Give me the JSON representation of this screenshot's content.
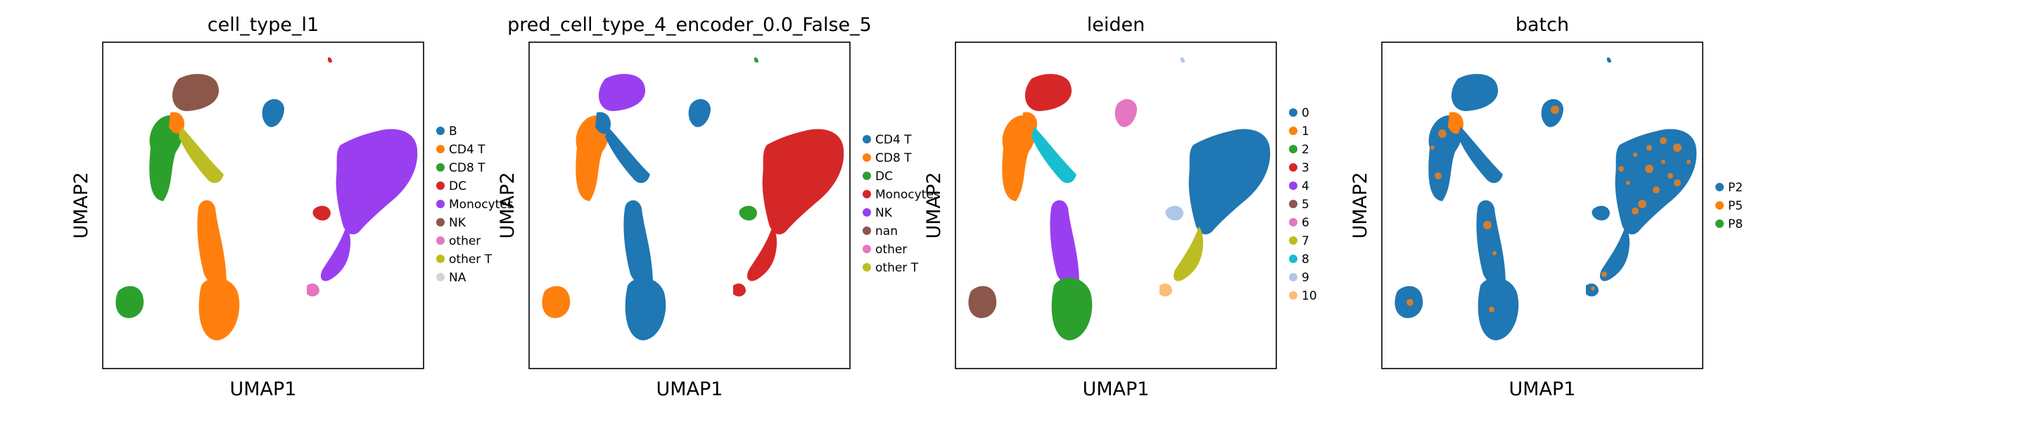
{
  "chart_data": [
    {
      "type": "scatter",
      "title": "cell_type_l1",
      "xlabel": "UMAP1",
      "ylabel": "UMAP2",
      "legend_placement": "right",
      "legend": [
        {
          "label": "B",
          "color": "#1f77b4"
        },
        {
          "label": "CD4 T",
          "color": "#ff7f0e"
        },
        {
          "label": "CD8 T",
          "color": "#2ca02c"
        },
        {
          "label": "DC",
          "color": "#d62728"
        },
        {
          "label": "Monocytes",
          "color": "#9a3ff0"
        },
        {
          "label": "NK",
          "color": "#8c564b"
        },
        {
          "label": "other",
          "color": "#e377c2"
        },
        {
          "label": "other T",
          "color": "#bcbd22"
        },
        {
          "label": "NA",
          "color": "#d3d3d3"
        }
      ],
      "regions": [
        {
          "region": "top-left",
          "color": "#8c564b"
        },
        {
          "region": "left-upper",
          "color": "#2ca02c"
        },
        {
          "region": "left-upper-edge",
          "color": "#ff7f0e"
        },
        {
          "region": "bridge",
          "color": "#bcbd22"
        },
        {
          "region": "central-column",
          "color": "#ff7f0e"
        },
        {
          "region": "central-bottom",
          "color": "#ff7f0e"
        },
        {
          "region": "far-left-small",
          "color": "#2ca02c"
        },
        {
          "region": "small-top-center",
          "color": "#1f77b4"
        },
        {
          "region": "tiny-top-right",
          "color": "#d62728"
        },
        {
          "region": "right-large",
          "color": "#9a3ff0"
        },
        {
          "region": "right-tail",
          "color": "#9a3ff0"
        },
        {
          "region": "right-red-bit",
          "color": "#d62728"
        },
        {
          "region": "bottom-pink",
          "color": "#e377c2"
        }
      ]
    },
    {
      "type": "scatter",
      "title": "pred_cell_type_4_encoder_0.0_False_5",
      "xlabel": "UMAP1",
      "ylabel": "UMAP2",
      "legend_placement": "right",
      "legend": [
        {
          "label": "CD4 T",
          "color": "#1f77b4"
        },
        {
          "label": "CD8 T",
          "color": "#ff7f0e"
        },
        {
          "label": "DC",
          "color": "#2ca02c"
        },
        {
          "label": "Monocytes",
          "color": "#d62728"
        },
        {
          "label": "NK",
          "color": "#9a3ff0"
        },
        {
          "label": "nan",
          "color": "#8c564b"
        },
        {
          "label": "other",
          "color": "#e377c2"
        },
        {
          "label": "other T",
          "color": "#bcbd22"
        }
      ],
      "regions": [
        {
          "region": "top-left",
          "color": "#9a3ff0"
        },
        {
          "region": "left-upper",
          "color": "#ff7f0e"
        },
        {
          "region": "left-upper-edge",
          "color": "#1f77b4"
        },
        {
          "region": "bridge",
          "color": "#1f77b4"
        },
        {
          "region": "central-column",
          "color": "#1f77b4"
        },
        {
          "region": "central-bottom",
          "color": "#1f77b4"
        },
        {
          "region": "far-left-small",
          "color": "#ff7f0e"
        },
        {
          "region": "small-top-center",
          "color": "#1f77b4"
        },
        {
          "region": "tiny-top-right",
          "color": "#2ca02c"
        },
        {
          "region": "right-large",
          "color": "#d62728"
        },
        {
          "region": "right-tail",
          "color": "#d62728"
        },
        {
          "region": "right-red-bit",
          "color": "#2ca02c"
        },
        {
          "region": "bottom-pink",
          "color": "#d62728"
        }
      ]
    },
    {
      "type": "scatter",
      "title": "leiden",
      "xlabel": "UMAP1",
      "ylabel": "UMAP2",
      "legend_placement": "right",
      "legend": [
        {
          "label": "0",
          "color": "#1f77b4"
        },
        {
          "label": "1",
          "color": "#ff7f0e"
        },
        {
          "label": "2",
          "color": "#2ca02c"
        },
        {
          "label": "3",
          "color": "#d62728"
        },
        {
          "label": "4",
          "color": "#9a3ff0"
        },
        {
          "label": "5",
          "color": "#8c564b"
        },
        {
          "label": "6",
          "color": "#e377c2"
        },
        {
          "label": "7",
          "color": "#bcbd22"
        },
        {
          "label": "8",
          "color": "#17becf"
        },
        {
          "label": "9",
          "color": "#aec7e8"
        },
        {
          "label": "10",
          "color": "#ffbb78"
        }
      ],
      "regions": [
        {
          "region": "top-left",
          "color": "#d62728"
        },
        {
          "region": "left-upper",
          "color": "#ff7f0e"
        },
        {
          "region": "left-upper-edge",
          "color": "#ff7f0e"
        },
        {
          "region": "bridge",
          "color": "#17becf"
        },
        {
          "region": "central-column",
          "color": "#9a3ff0"
        },
        {
          "region": "central-bottom",
          "color": "#2ca02c"
        },
        {
          "region": "far-left-small",
          "color": "#8c564b"
        },
        {
          "region": "small-top-center",
          "color": "#e377c2"
        },
        {
          "region": "tiny-top-right",
          "color": "#aec7e8"
        },
        {
          "region": "right-large",
          "color": "#1f77b4"
        },
        {
          "region": "right-tail",
          "color": "#bcbd22"
        },
        {
          "region": "right-red-bit",
          "color": "#aec7e8"
        },
        {
          "region": "bottom-pink",
          "color": "#ffbb78"
        }
      ]
    },
    {
      "type": "scatter",
      "title": "batch",
      "xlabel": "UMAP1",
      "ylabel": "UMAP2",
      "legend_placement": "right",
      "legend": [
        {
          "label": "P2",
          "color": "#1f77b4"
        },
        {
          "label": "P5",
          "color": "#ff7f0e"
        },
        {
          "label": "P8",
          "color": "#2ca02c"
        }
      ],
      "regions": [
        {
          "region": "top-left",
          "color": "#1f77b4"
        },
        {
          "region": "left-upper",
          "color": "#1f77b4"
        },
        {
          "region": "left-upper-edge",
          "color": "#ff7f0e"
        },
        {
          "region": "bridge",
          "color": "#1f77b4"
        },
        {
          "region": "central-column",
          "color": "#1f77b4"
        },
        {
          "region": "central-bottom",
          "color": "#1f77b4"
        },
        {
          "region": "far-left-small",
          "color": "#1f77b4"
        },
        {
          "region": "small-top-center",
          "color": "#1f77b4"
        },
        {
          "region": "tiny-top-right",
          "color": "#1f77b4"
        },
        {
          "region": "right-large",
          "color": "#1f77b4"
        },
        {
          "region": "right-tail",
          "color": "#1f77b4"
        },
        {
          "region": "right-red-bit",
          "color": "#1f77b4"
        },
        {
          "region": "bottom-pink",
          "color": "#1f77b4"
        }
      ],
      "mixed_overlay_color": "#ff7f0e"
    }
  ]
}
